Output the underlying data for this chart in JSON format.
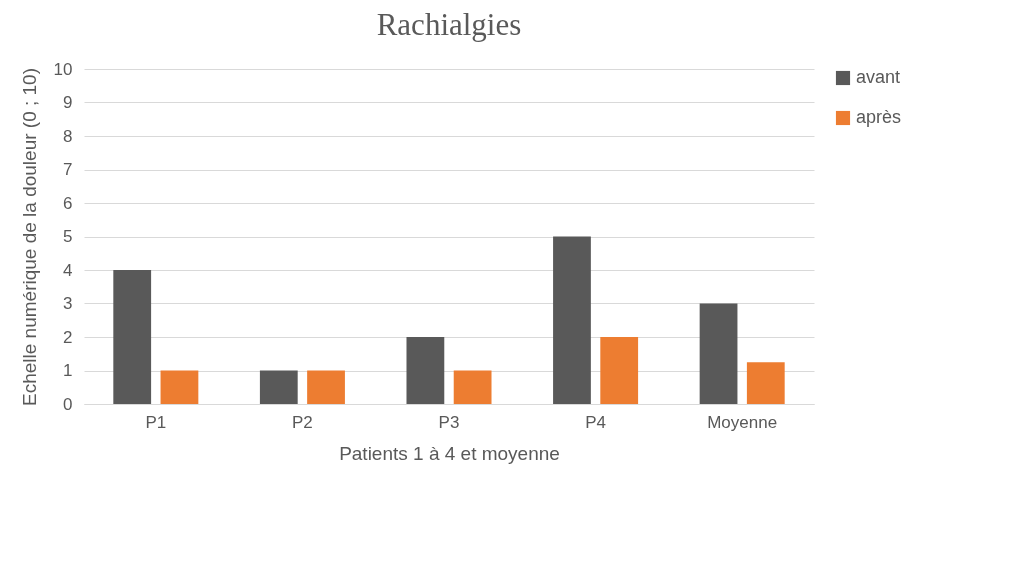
{
  "chart_data": {
    "type": "bar",
    "title": "Rachialgies",
    "xlabel": "Patients 1 à 4 et moyenne",
    "ylabel": "Echelle numérique de la douleur (0 ; 10)",
    "categories": [
      "P1",
      "P2",
      "P3",
      "P4",
      "Moyenne"
    ],
    "series": [
      {
        "name": "avant",
        "color": "#595959",
        "values": [
          4,
          1,
          2,
          5,
          3
        ]
      },
      {
        "name": "après",
        "color": "#ed7d31",
        "values": [
          1,
          1,
          1,
          2,
          1.25
        ]
      }
    ],
    "ylim": [
      0,
      10
    ],
    "yticks": [
      0,
      1,
      2,
      3,
      4,
      5,
      6,
      7,
      8,
      9,
      10
    ],
    "grid": "y",
    "legend": "right"
  }
}
